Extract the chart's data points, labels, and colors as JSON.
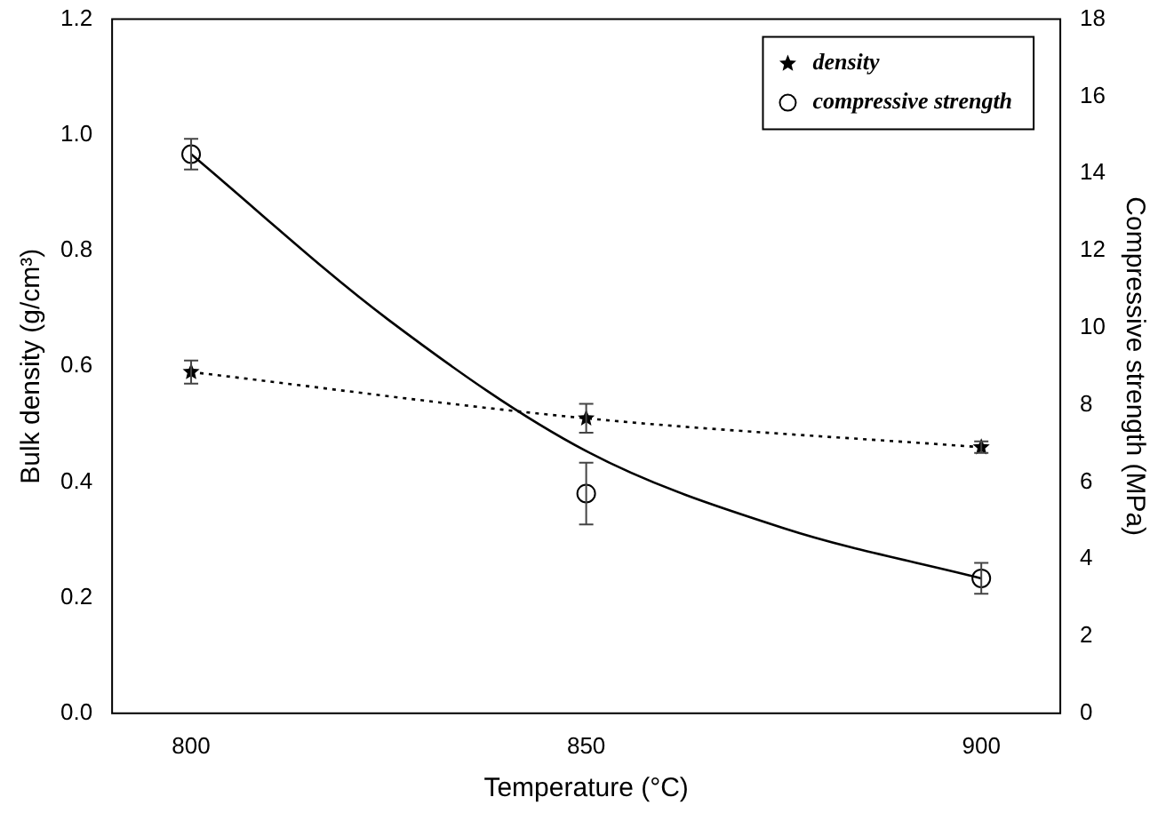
{
  "chart_data": {
    "type": "scatter",
    "xlabel": "Temperature (°C)",
    "ylabel": "Bulk density (g/cm³)",
    "y2label": "Compressive strength (MPa)",
    "x": [
      800,
      850,
      900
    ],
    "xlim": [
      790,
      910
    ],
    "xticks": [
      800,
      850,
      900
    ],
    "ylim": [
      0,
      1.2
    ],
    "yticks": [
      {
        "value": 0,
        "label": "0.0"
      },
      0.2,
      0.4,
      0.6,
      0.8,
      {
        "value": 1,
        "label": "1.0"
      },
      1.2
    ],
    "y2lim": [
      0,
      18
    ],
    "y2ticks": [
      0,
      2,
      4,
      6,
      8,
      10,
      12,
      14,
      16,
      18
    ],
    "grid": false,
    "legend": "top right",
    "series": [
      {
        "name": "density",
        "type": "line",
        "color": "#000000",
        "marker": "star",
        "line_style": "dotted",
        "values": [
          0.59,
          0.51,
          0.46
        ],
        "errors": [
          0.02,
          0.025,
          0.01
        ]
      },
      {
        "name": "compressive strength",
        "type": "scatter",
        "color": "#000000",
        "marker": "circle",
        "axis": "y2",
        "values": [
          14.5,
          5.7,
          3.5
        ],
        "errors": [
          0.4,
          0.8,
          0.4
        ]
      },
      {
        "type": "line",
        "color": "#000000",
        "axis": "y2",
        "line_style": "solid",
        "x": [
          800,
          825,
          850,
          875,
          900
        ],
        "values": [
          14.5,
          10.2,
          6.8,
          4.8,
          3.5
        ]
      }
    ]
  }
}
